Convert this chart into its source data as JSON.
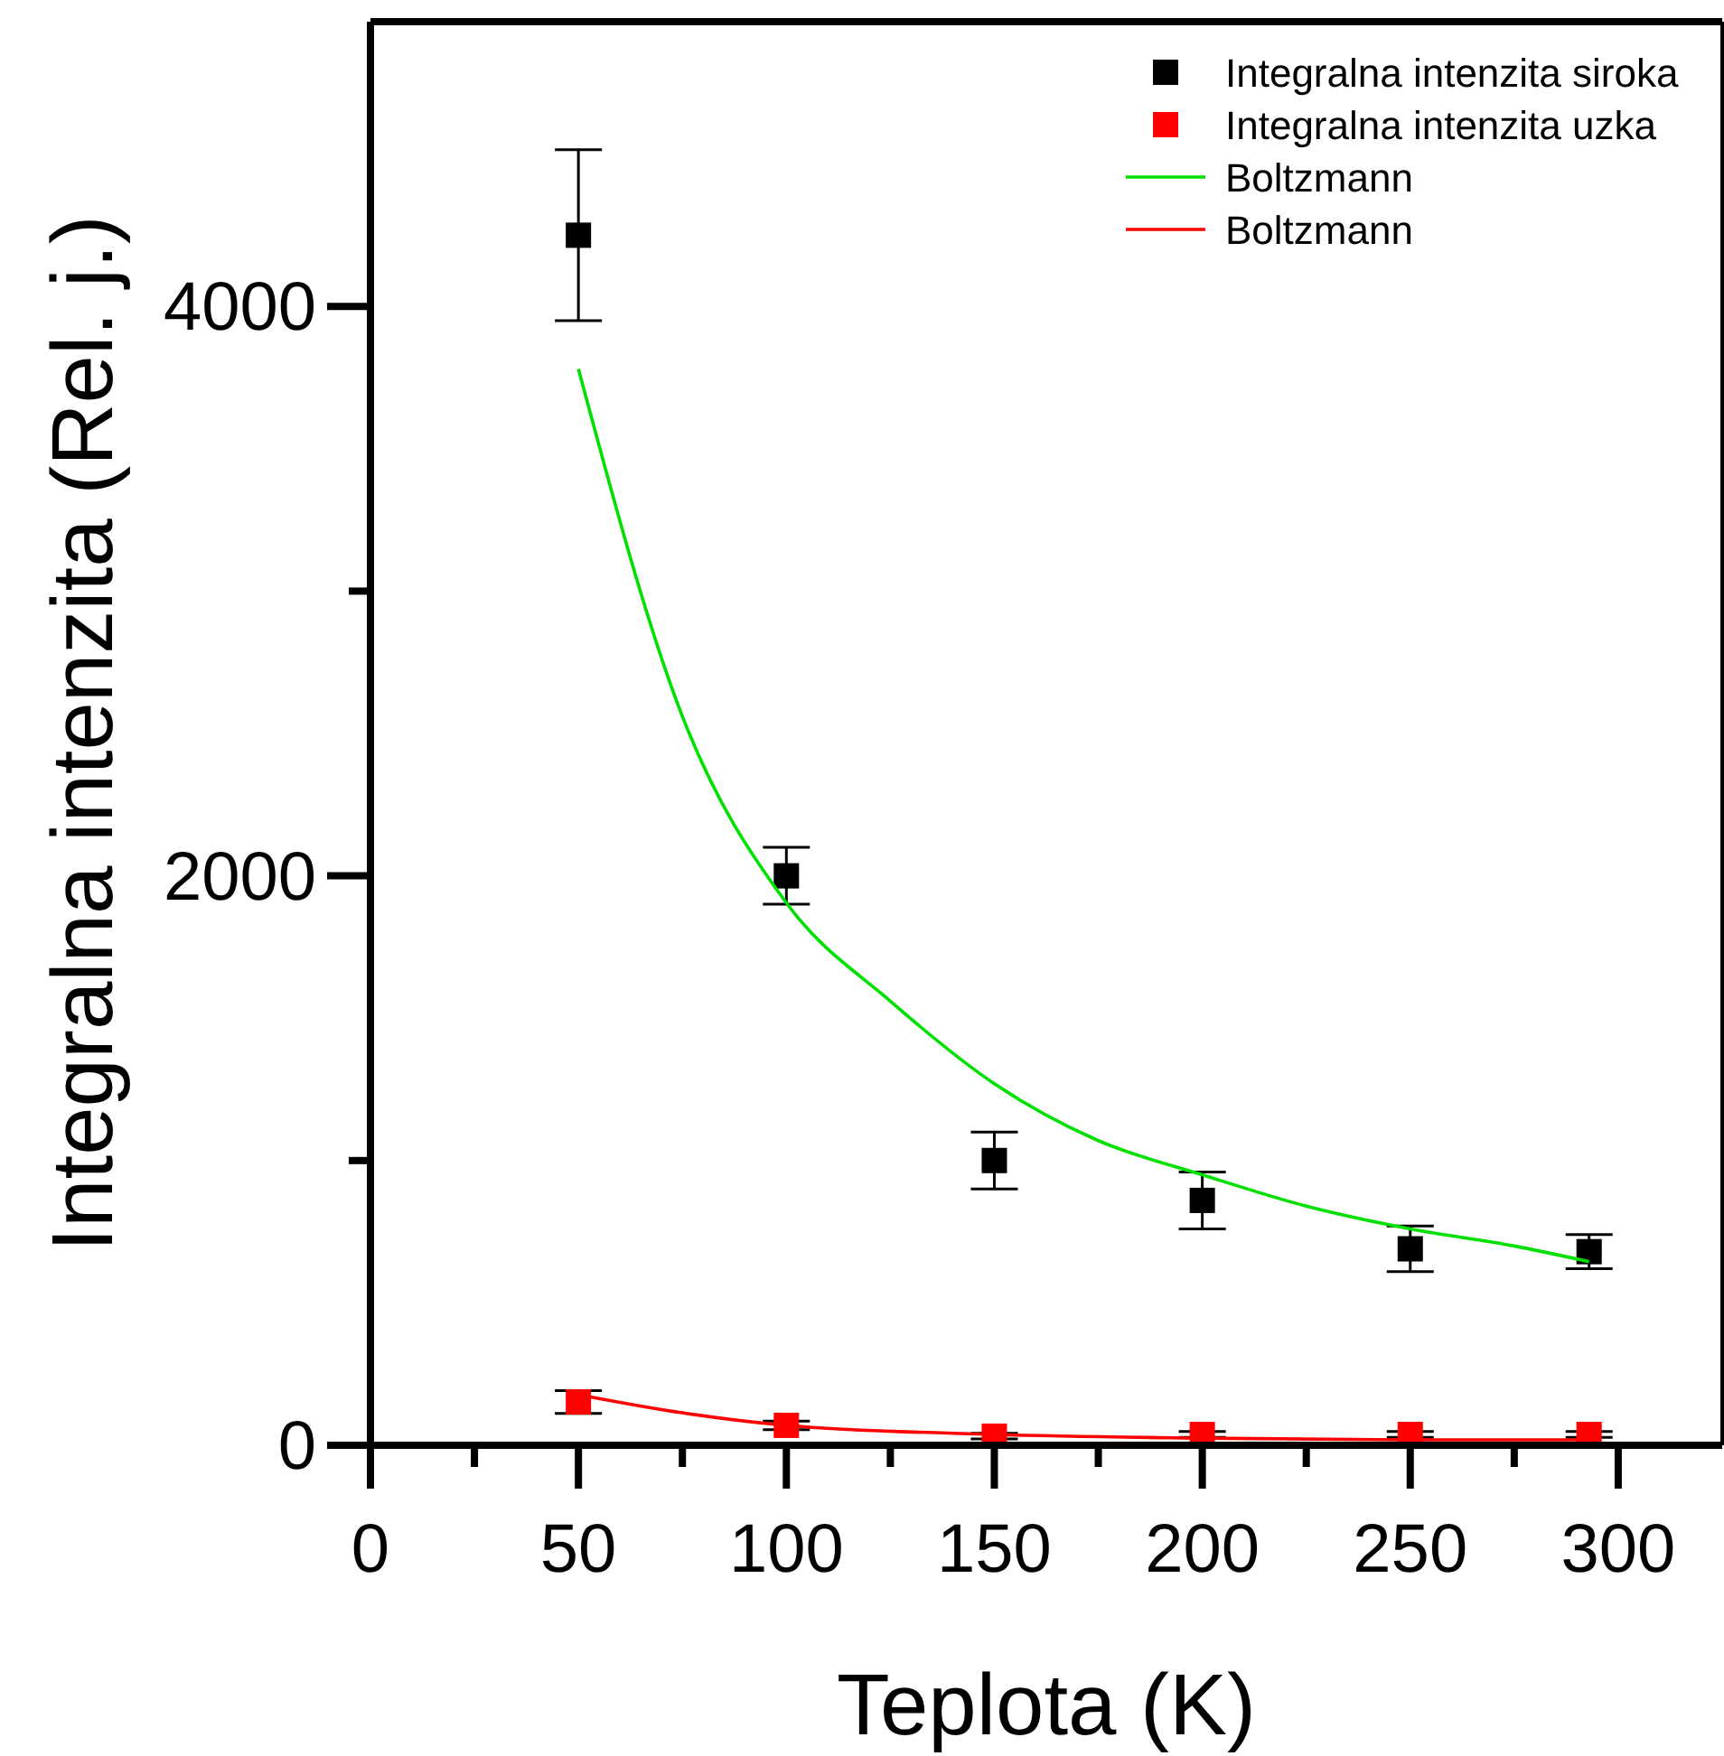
{
  "chart_data": {
    "type": "scatter",
    "xlabel": "Teplota (K)",
    "ylabel": "Integralna intenzita (Rel. j.)",
    "xlim": [
      0,
      325
    ],
    "ylim": [
      0,
      5000
    ],
    "xticks": [
      0,
      {
        "value": 25,
        "label": null
      },
      50,
      {
        "value": 75,
        "label": null
      },
      100,
      {
        "value": 125,
        "label": null
      },
      150,
      {
        "value": 175,
        "label": null
      },
      200,
      {
        "value": 225,
        "label": null
      },
      250,
      {
        "value": 275,
        "label": null
      },
      300
    ],
    "yticks": [
      0,
      {
        "value": 1000,
        "label": null
      },
      2000,
      {
        "value": 3000,
        "label": null
      },
      4000
    ],
    "x": [
      50,
      100,
      150,
      200,
      250,
      293
    ],
    "marker": "square",
    "legend": "top right",
    "grid": false,
    "series": [
      {
        "name": "Integralna intenzita siroka",
        "color": "#000000",
        "values": [
          4250,
          2000,
          1000,
          860,
          690,
          680
        ],
        "errors": [
          300,
          100,
          100,
          100,
          80,
          60
        ]
      },
      {
        "name": "Integralna intenzita uzka",
        "color": "#ff0000",
        "values": [
          152,
          70,
          32,
          38,
          38,
          38
        ],
        "errors": [
          40,
          15,
          10,
          10,
          10,
          10
        ]
      },
      {
        "name": "Boltzmann",
        "type": "line",
        "color": "#00e000",
        "marker": "none",
        "x": [
          50,
          75,
          100,
          125,
          150,
          175,
          200,
          225,
          250,
          275,
          293
        ],
        "values": [
          3780,
          2560,
          1905,
          1560,
          1270,
          1070,
          950,
          840,
          760,
          700,
          645
        ]
      },
      {
        "name": "Boltzmann",
        "type": "line",
        "color": "#ff0000",
        "marker": "none",
        "x": [
          50,
          75,
          100,
          150,
          200,
          250,
          293
        ],
        "values": [
          178,
          114,
          70,
          38,
          25,
          19,
          19
        ]
      }
    ]
  }
}
